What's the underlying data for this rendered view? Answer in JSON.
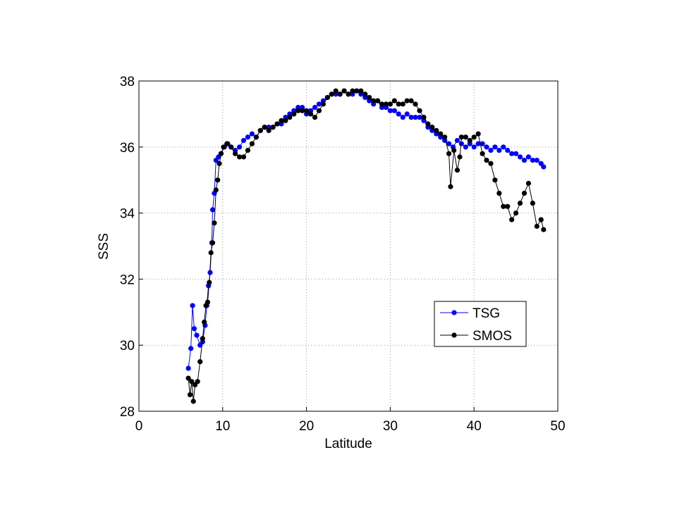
{
  "chart_data": {
    "type": "line",
    "x_label": "Latitude",
    "y_label": "SSS",
    "xlim": [
      0,
      50
    ],
    "xticks": [
      0,
      10,
      20,
      30,
      40,
      50
    ],
    "ylim": [
      28,
      38
    ],
    "yticks": [
      28,
      30,
      32,
      34,
      36,
      38
    ],
    "grid": true,
    "series": [
      {
        "name": "TSG",
        "color": "#0000ff",
        "x": [
          5.9,
          6.2,
          6.4,
          6.6,
          6.9,
          7.3,
          7.6,
          7.9,
          8.1,
          8.3,
          8.5,
          8.7,
          8.8,
          9.0,
          9.2,
          9.5,
          9.8,
          10.2,
          10.6,
          11,
          11.5,
          12,
          12.5,
          13,
          13.5,
          14,
          14.5,
          15,
          15.5,
          16,
          16.5,
          17,
          17.5,
          18,
          18.5,
          19,
          19.5,
          20,
          20.5,
          21,
          21.5,
          22,
          22.5,
          23,
          23.5,
          24,
          24.5,
          25,
          25.5,
          26,
          26.5,
          27,
          27.5,
          28,
          28.5,
          29,
          29.5,
          30,
          30.5,
          31,
          31.5,
          32,
          32.5,
          33,
          33.5,
          34,
          34.5,
          35,
          35.5,
          36,
          36.5,
          37,
          37.5,
          38,
          38.5,
          39,
          39.5,
          40,
          40.5,
          41,
          41.5,
          42,
          42.5,
          43,
          43.5,
          44,
          44.5,
          45,
          45.5,
          46,
          46.5,
          47,
          47.5,
          48,
          48.3
        ],
        "values": [
          29.3,
          29.9,
          31.2,
          30.5,
          30.3,
          30.0,
          30.1,
          30.6,
          31.2,
          31.8,
          32.2,
          33.1,
          34.1,
          34.6,
          35.6,
          35.7,
          35.8,
          36.0,
          36.1,
          36.0,
          35.9,
          36.0,
          36.2,
          36.3,
          36.4,
          36.3,
          36.5,
          36.6,
          36.6,
          36.6,
          36.7,
          36.7,
          36.9,
          37.0,
          37.1,
          37.2,
          37.2,
          37.0,
          37.1,
          37.2,
          37.3,
          37.4,
          37.5,
          37.6,
          37.6,
          37.6,
          37.7,
          37.6,
          37.6,
          37.7,
          37.6,
          37.5,
          37.4,
          37.3,
          37.4,
          37.2,
          37.2,
          37.1,
          37.1,
          37.0,
          36.9,
          37.0,
          36.9,
          36.9,
          36.9,
          36.8,
          36.6,
          36.5,
          36.4,
          36.3,
          36.2,
          36.1,
          36.0,
          36.2,
          36.1,
          36.0,
          36.1,
          36.0,
          36.1,
          36.1,
          36.0,
          35.9,
          36.0,
          35.9,
          36.0,
          35.9,
          35.8,
          35.8,
          35.7,
          35.6,
          35.7,
          35.6,
          35.6,
          35.5,
          35.4
        ]
      },
      {
        "name": "SMOS",
        "color": "#000000",
        "x": [
          5.9,
          6.1,
          6.3,
          6.5,
          6.7,
          7,
          7.3,
          7.6,
          7.8,
          8.0,
          8.2,
          8.4,
          8.6,
          8.8,
          9.0,
          9.2,
          9.4,
          9.6,
          9.8,
          10.1,
          10.5,
          11,
          11.5,
          12,
          12.5,
          13,
          13.5,
          14,
          14.5,
          15,
          15.5,
          16,
          16.5,
          17,
          17.5,
          18,
          18.5,
          19,
          19.5,
          20,
          20.5,
          21,
          21.5,
          22,
          22.5,
          23,
          23.5,
          24,
          24.5,
          25,
          25.5,
          26,
          26.5,
          27,
          27.5,
          28,
          28.5,
          29,
          29.5,
          30,
          30.5,
          31,
          31.5,
          32,
          32.5,
          33,
          33.5,
          34,
          34.5,
          35,
          35.5,
          36,
          36.5,
          37,
          37.2,
          37.6,
          38,
          38.3,
          38.5,
          39,
          39.5,
          40,
          40.5,
          41,
          41.5,
          42,
          42.5,
          43,
          43.5,
          44,
          44.5,
          45,
          45.5,
          46,
          46.5,
          47,
          47.5,
          48,
          48.3
        ],
        "values": [
          29.0,
          28.5,
          28.9,
          28.3,
          28.8,
          28.9,
          29.5,
          30.2,
          30.7,
          31.2,
          31.3,
          31.9,
          32.8,
          33.1,
          33.7,
          34.7,
          35.0,
          35.5,
          35.8,
          36.0,
          36.1,
          36.0,
          35.8,
          35.7,
          35.7,
          35.9,
          36.1,
          36.3,
          36.5,
          36.6,
          36.5,
          36.6,
          36.7,
          36.8,
          36.8,
          36.9,
          37.0,
          37.1,
          37.1,
          37.1,
          37.0,
          36.9,
          37.1,
          37.3,
          37.5,
          37.6,
          37.7,
          37.6,
          37.7,
          37.6,
          37.7,
          37.7,
          37.7,
          37.6,
          37.5,
          37.4,
          37.4,
          37.3,
          37.3,
          37.3,
          37.4,
          37.3,
          37.3,
          37.4,
          37.4,
          37.3,
          37.1,
          36.9,
          36.7,
          36.6,
          36.5,
          36.4,
          36.3,
          35.8,
          34.8,
          35.9,
          35.3,
          35.7,
          36.3,
          36.3,
          36.2,
          36.3,
          36.4,
          35.8,
          35.6,
          35.5,
          35.0,
          34.6,
          34.2,
          34.2,
          33.8,
          34.0,
          34.3,
          34.6,
          34.9,
          34.3,
          33.6,
          33.8,
          33.5
        ]
      }
    ]
  }
}
